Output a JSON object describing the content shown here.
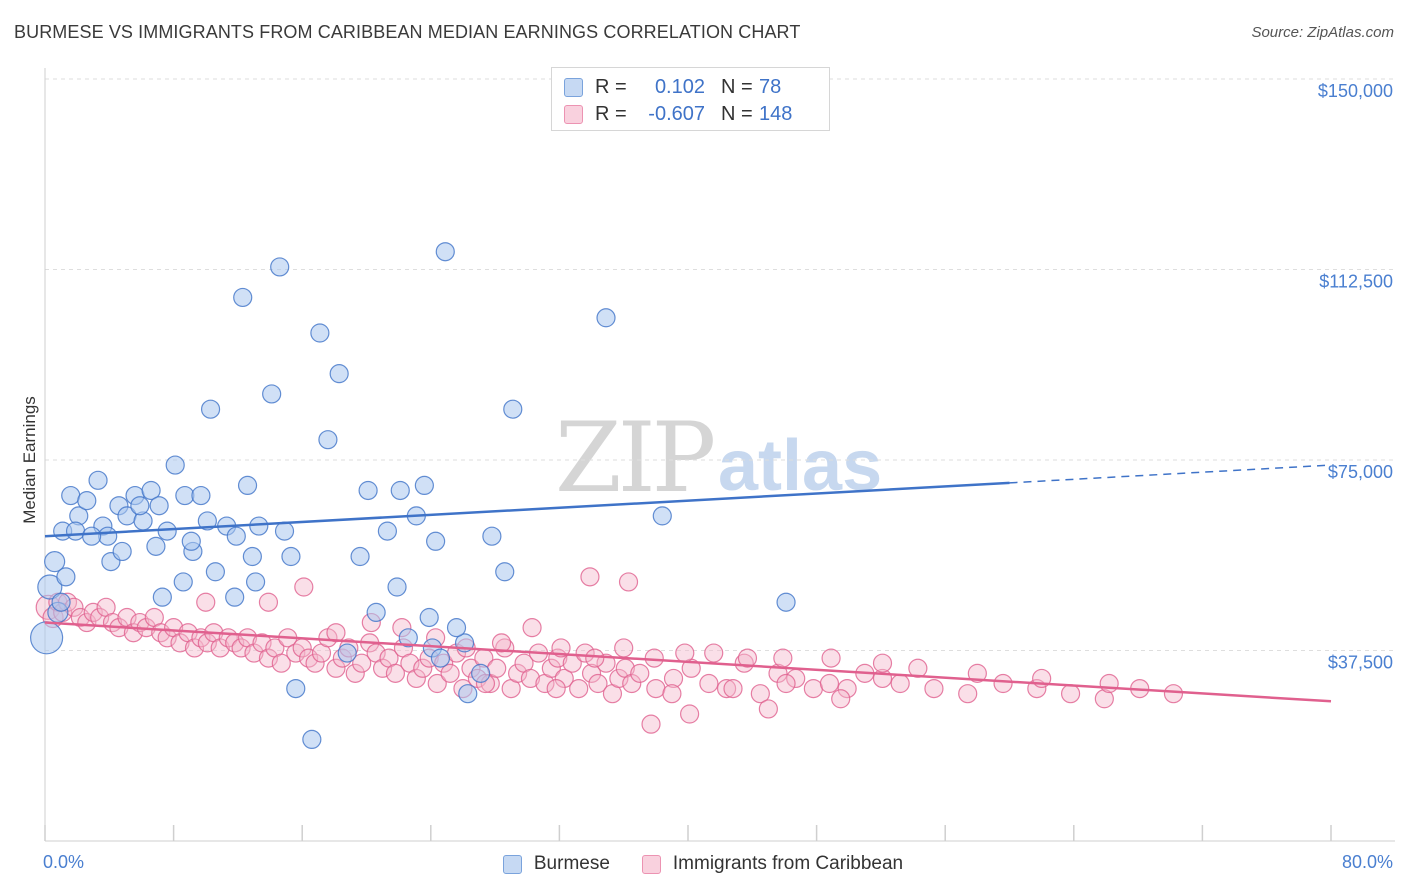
{
  "header": {
    "title": "BURMESE VS IMMIGRANTS FROM CARIBBEAN MEDIAN EARNINGS CORRELATION CHART",
    "source": "Source: ZipAtlas.com"
  },
  "watermark": {
    "zip": "ZIP",
    "atlas": "atlas"
  },
  "legend": {
    "rows": [
      {
        "r_label": "R =",
        "r_value": "0.102",
        "n_label": "N =",
        "n_value": "78",
        "color": "#a9c6ee"
      },
      {
        "r_label": "R =",
        "r_value": "-0.607",
        "n_label": "N =",
        "n_value": "148",
        "color": "#f4b8cb"
      }
    ],
    "bottom": [
      {
        "label": "Burmese",
        "color": "#a9c6ee"
      },
      {
        "label": "Immigrants from Caribbean",
        "color": "#f4b8cb"
      }
    ]
  },
  "chart_data": {
    "type": "scatter",
    "title": "BURMESE VS IMMIGRANTS FROM CARIBBEAN MEDIAN EARNINGS CORRELATION CHART",
    "ylabel": "Median Earnings",
    "xlabel": "",
    "xlim": [
      0,
      80
    ],
    "ylim": [
      0,
      150000
    ],
    "x_tick_labels": [
      "0.0%",
      "80.0%"
    ],
    "y_ticks": [
      37500,
      75000,
      112500,
      150000
    ],
    "y_tick_labels": [
      "$37,500",
      "$75,000",
      "$112,500",
      "$150,000"
    ],
    "grid": true,
    "colors": {
      "burmese": "#3f73c8",
      "burmese_fill": "#a9c6ee",
      "caribbean": "#e0608e",
      "caribbean_fill": "#f4b8cb"
    },
    "series": [
      {
        "name": "Burmese",
        "trend": {
          "x": [
            0,
            60
          ],
          "y": [
            60000,
            70500
          ],
          "dashed_to": [
            80,
            74000
          ]
        },
        "points": [
          [
            0.1,
            40000,
            16
          ],
          [
            0.3,
            50000,
            12
          ],
          [
            0.6,
            55000,
            10
          ],
          [
            0.8,
            45000,
            10
          ],
          [
            1.1,
            61000,
            9
          ],
          [
            1.3,
            52000,
            9
          ],
          [
            1.6,
            68000,
            9
          ],
          [
            2.1,
            64000,
            9
          ],
          [
            2.6,
            67000,
            9
          ],
          [
            3.3,
            71000,
            9
          ],
          [
            3.6,
            62000,
            9
          ],
          [
            4.1,
            55000,
            9
          ],
          [
            4.6,
            66000,
            9
          ],
          [
            5.1,
            64000,
            9
          ],
          [
            5.6,
            68000,
            9
          ],
          [
            6.1,
            63000,
            9
          ],
          [
            6.6,
            69000,
            9
          ],
          [
            7.1,
            66000,
            9
          ],
          [
            7.6,
            61000,
            9
          ],
          [
            8.1,
            74000,
            9
          ],
          [
            8.7,
            68000,
            9
          ],
          [
            9.2,
            57000,
            9
          ],
          [
            9.7,
            68000,
            9
          ],
          [
            10.3,
            85000,
            9
          ],
          [
            11.3,
            62000,
            9
          ],
          [
            11.8,
            48000,
            9
          ],
          [
            12.3,
            107000,
            9
          ],
          [
            12.6,
            70000,
            9
          ],
          [
            13.3,
            62000,
            9
          ],
          [
            14.1,
            88000,
            9
          ],
          [
            14.6,
            113000,
            9
          ],
          [
            15.3,
            56000,
            9
          ],
          [
            17.1,
            100000,
            9
          ],
          [
            17.6,
            79000,
            9
          ],
          [
            18.3,
            92000,
            9
          ],
          [
            20.1,
            69000,
            9
          ],
          [
            21.3,
            61000,
            9
          ],
          [
            22.1,
            69000,
            9
          ],
          [
            23.1,
            64000,
            9
          ],
          [
            23.6,
            70000,
            9
          ],
          [
            24.3,
            59000,
            9
          ],
          [
            24.9,
            116000,
            9
          ],
          [
            27.8,
            60000,
            9
          ],
          [
            29.1,
            85000,
            9
          ],
          [
            34.9,
            103000,
            9
          ],
          [
            38.4,
            64000,
            9
          ],
          [
            46.1,
            47000,
            9
          ],
          [
            1.9,
            61000,
            9
          ],
          [
            3.9,
            60000,
            9
          ],
          [
            6.9,
            58000,
            9
          ],
          [
            9.1,
            59000,
            9
          ],
          [
            10.6,
            53000,
            9
          ],
          [
            11.9,
            60000,
            9
          ],
          [
            13.1,
            51000,
            9
          ],
          [
            7.3,
            48000,
            9
          ],
          [
            16.6,
            20000,
            9
          ],
          [
            15.6,
            30000,
            9
          ],
          [
            22.6,
            40000,
            9
          ],
          [
            24.1,
            38000,
            9
          ],
          [
            26.1,
            39000,
            9
          ],
          [
            26.3,
            29000,
            9
          ],
          [
            18.8,
            37000,
            9
          ],
          [
            20.6,
            45000,
            9
          ],
          [
            21.9,
            50000,
            9
          ],
          [
            23.9,
            44000,
            9
          ],
          [
            25.6,
            42000,
            9
          ],
          [
            27.1,
            33000,
            9
          ],
          [
            24.6,
            36000,
            9
          ],
          [
            4.8,
            57000,
            9
          ],
          [
            8.6,
            51000,
            9
          ],
          [
            12.9,
            56000,
            9
          ],
          [
            1.0,
            47000,
            9
          ],
          [
            2.9,
            60000,
            9
          ],
          [
            5.9,
            66000,
            9
          ],
          [
            10.1,
            63000,
            9
          ],
          [
            14.9,
            61000,
            9
          ],
          [
            19.6,
            56000,
            9
          ],
          [
            28.6,
            53000,
            9
          ]
        ]
      },
      {
        "name": "Immigrants from Caribbean",
        "trend": {
          "x": [
            0,
            80
          ],
          "y": [
            43000,
            27500
          ]
        },
        "points": [
          [
            0.2,
            46000,
            12
          ],
          [
            0.5,
            44000,
            10
          ],
          [
            0.8,
            47000,
            9
          ],
          [
            1.1,
            45000,
            9
          ],
          [
            1.4,
            47000,
            9
          ],
          [
            1.8,
            46000,
            9
          ],
          [
            2.2,
            44000,
            9
          ],
          [
            2.6,
            43000,
            9
          ],
          [
            3.0,
            45000,
            9
          ],
          [
            3.4,
            44000,
            9
          ],
          [
            3.8,
            46000,
            9
          ],
          [
            4.2,
            43000,
            9
          ],
          [
            4.6,
            42000,
            9
          ],
          [
            5.1,
            44000,
            9
          ],
          [
            5.5,
            41000,
            9
          ],
          [
            5.9,
            43000,
            9
          ],
          [
            6.3,
            42000,
            9
          ],
          [
            6.8,
            44000,
            9
          ],
          [
            7.2,
            41000,
            9
          ],
          [
            7.6,
            40000,
            9
          ],
          [
            8.0,
            42000,
            9
          ],
          [
            8.4,
            39000,
            9
          ],
          [
            8.9,
            41000,
            9
          ],
          [
            9.3,
            38000,
            9
          ],
          [
            9.7,
            40000,
            9
          ],
          [
            10.1,
            39000,
            9
          ],
          [
            10.5,
            41000,
            9
          ],
          [
            10.9,
            38000,
            9
          ],
          [
            11.4,
            40000,
            9
          ],
          [
            11.8,
            39000,
            9
          ],
          [
            12.2,
            38000,
            9
          ],
          [
            12.6,
            40000,
            9
          ],
          [
            13.0,
            37000,
            9
          ],
          [
            13.5,
            39000,
            9
          ],
          [
            13.9,
            36000,
            9
          ],
          [
            14.3,
            38000,
            9
          ],
          [
            14.7,
            35000,
            9
          ],
          [
            15.1,
            40000,
            9
          ],
          [
            15.6,
            37000,
            9
          ],
          [
            16.0,
            38000,
            9
          ],
          [
            16.4,
            36000,
            9
          ],
          [
            16.8,
            35000,
            9
          ],
          [
            17.2,
            37000,
            9
          ],
          [
            17.6,
            40000,
            9
          ],
          [
            18.1,
            34000,
            9
          ],
          [
            18.5,
            36000,
            9
          ],
          [
            18.9,
            38000,
            9
          ],
          [
            19.3,
            33000,
            9
          ],
          [
            19.7,
            35000,
            9
          ],
          [
            20.2,
            39000,
            9
          ],
          [
            20.6,
            37000,
            9
          ],
          [
            21.0,
            34000,
            9
          ],
          [
            21.4,
            36000,
            9
          ],
          [
            21.8,
            33000,
            9
          ],
          [
            22.3,
            38000,
            9
          ],
          [
            22.7,
            35000,
            9
          ],
          [
            23.1,
            32000,
            9
          ],
          [
            23.5,
            34000,
            9
          ],
          [
            23.9,
            36000,
            9
          ],
          [
            24.4,
            31000,
            9
          ],
          [
            24.8,
            35000,
            9
          ],
          [
            25.2,
            33000,
            9
          ],
          [
            25.6,
            37000,
            9
          ],
          [
            26.0,
            30000,
            9
          ],
          [
            26.5,
            34000,
            9
          ],
          [
            26.9,
            32000,
            9
          ],
          [
            27.3,
            36000,
            9
          ],
          [
            27.7,
            31000,
            9
          ],
          [
            28.1,
            34000,
            9
          ],
          [
            28.6,
            38000,
            9
          ],
          [
            29.0,
            30000,
            9
          ],
          [
            29.4,
            33000,
            9
          ],
          [
            29.8,
            35000,
            9
          ],
          [
            30.2,
            32000,
            9
          ],
          [
            30.7,
            37000,
            9
          ],
          [
            31.1,
            31000,
            9
          ],
          [
            31.5,
            34000,
            9
          ],
          [
            31.9,
            36000,
            9
          ],
          [
            32.3,
            32000,
            9
          ],
          [
            32.8,
            35000,
            9
          ],
          [
            33.2,
            30000,
            9
          ],
          [
            33.6,
            37000,
            9
          ],
          [
            34.0,
            33000,
            9
          ],
          [
            34.4,
            31000,
            9
          ],
          [
            34.9,
            35000,
            9
          ],
          [
            35.3,
            29000,
            9
          ],
          [
            35.7,
            32000,
            9
          ],
          [
            36.1,
            34000,
            9
          ],
          [
            36.5,
            31000,
            9
          ],
          [
            37.0,
            33000,
            9
          ],
          [
            38.0,
            30000,
            9
          ],
          [
            39.1,
            32000,
            9
          ],
          [
            40.2,
            34000,
            9
          ],
          [
            41.3,
            31000,
            9
          ],
          [
            42.4,
            30000,
            9
          ],
          [
            43.5,
            35000,
            9
          ],
          [
            44.5,
            29000,
            9
          ],
          [
            45.6,
            33000,
            9
          ],
          [
            46.7,
            32000,
            9
          ],
          [
            47.8,
            30000,
            9
          ],
          [
            48.8,
            31000,
            9
          ],
          [
            49.9,
            30000,
            9
          ],
          [
            51.0,
            33000,
            9
          ],
          [
            52.1,
            32000,
            9
          ],
          [
            53.2,
            31000,
            9
          ],
          [
            55.3,
            30000,
            9
          ],
          [
            57.4,
            29000,
            9
          ],
          [
            59.6,
            31000,
            9
          ],
          [
            61.7,
            30000,
            9
          ],
          [
            63.8,
            29000,
            9
          ],
          [
            65.9,
            28000,
            9
          ],
          [
            68.1,
            30000,
            9
          ],
          [
            70.2,
            29000,
            9
          ],
          [
            33.9,
            52000,
            9
          ],
          [
            36.3,
            51000,
            9
          ],
          [
            16.1,
            50000,
            9
          ],
          [
            10.0,
            47000,
            9
          ],
          [
            13.9,
            47000,
            9
          ],
          [
            18.1,
            41000,
            9
          ],
          [
            20.3,
            43000,
            9
          ],
          [
            22.2,
            42000,
            9
          ],
          [
            24.3,
            40000,
            9
          ],
          [
            26.2,
            38000,
            9
          ],
          [
            28.4,
            39000,
            9
          ],
          [
            30.3,
            42000,
            9
          ],
          [
            32.1,
            38000,
            9
          ],
          [
            34.2,
            36000,
            9
          ],
          [
            36.0,
            38000,
            9
          ],
          [
            37.9,
            36000,
            9
          ],
          [
            39.8,
            37000,
            9
          ],
          [
            41.6,
            37000,
            9
          ],
          [
            43.7,
            36000,
            9
          ],
          [
            45.9,
            36000,
            9
          ],
          [
            48.9,
            36000,
            9
          ],
          [
            52.1,
            35000,
            9
          ],
          [
            54.3,
            34000,
            9
          ],
          [
            58.0,
            33000,
            9
          ],
          [
            62.0,
            32000,
            9
          ],
          [
            66.2,
            31000,
            9
          ],
          [
            37.7,
            23000,
            9
          ],
          [
            40.1,
            25000,
            9
          ],
          [
            45.0,
            26000,
            9
          ],
          [
            27.4,
            31000,
            9
          ],
          [
            31.8,
            30000,
            9
          ],
          [
            39.0,
            29000,
            9
          ],
          [
            42.8,
            30000,
            9
          ],
          [
            46.1,
            31000,
            9
          ],
          [
            49.5,
            28000,
            9
          ]
        ]
      }
    ]
  }
}
